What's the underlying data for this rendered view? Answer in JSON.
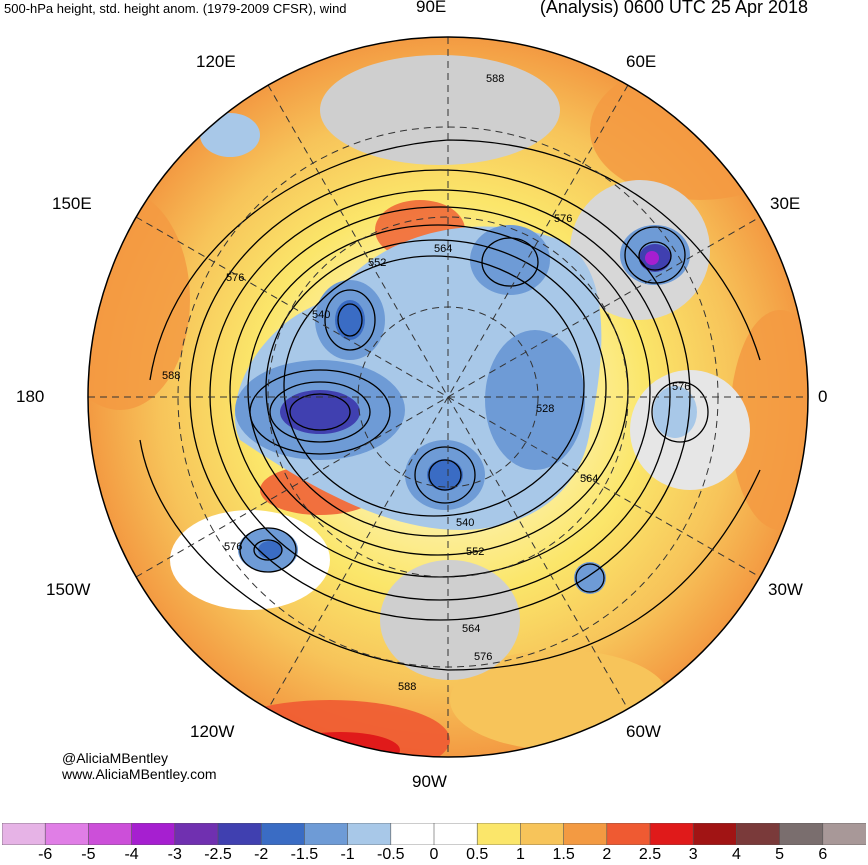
{
  "header": {
    "left_title": "500-hPa height, std. height anom. (1979-2009 CFSR), wind",
    "right_title": "(Analysis) 0600 UTC 25 Apr 2018"
  },
  "longitude_labels": {
    "e90": "90E",
    "e120": "120E",
    "e60": "60E",
    "e150": "150E",
    "e30": "30E",
    "l180": "180",
    "l0": "0",
    "w150": "150W",
    "w30": "30W",
    "w120": "120W",
    "w60": "60W",
    "w90": "90W"
  },
  "contour_labels": {
    "c588_top": "588",
    "c576_ne": "576",
    "c564_n": "564",
    "c552_n": "552",
    "c540_nw": "540",
    "c576_w": "576",
    "c588_w": "588",
    "c576_e": "576",
    "c528_c": "528",
    "c564_e": "564",
    "c540_s": "540",
    "c552_s": "552",
    "c576_sw": "576",
    "c564_s": "564",
    "c576_s": "576",
    "c588_s": "588"
  },
  "credits": {
    "twitter": "@AliciaMBentley",
    "website": "www.AliciaMBentley.com"
  },
  "colorbar": {
    "labels": [
      "-6",
      "-5",
      "-4",
      "-3",
      "-2.5",
      "-2",
      "-1.5",
      "-1",
      "-0.5",
      "0",
      "0.5",
      "1",
      "1.5",
      "2",
      "2.5",
      "3",
      "4",
      "5",
      "6"
    ],
    "colors": [
      "#e6b3e6",
      "#e07ee6",
      "#cc4fd9",
      "#a61fd0",
      "#7030b0",
      "#4040b0",
      "#3a6cc4",
      "#6e9bd6",
      "#a8c8e8",
      "#ffffff",
      "#ffffff",
      "#fbe66a",
      "#f7c45a",
      "#f39a42",
      "#ef5a32",
      "#e01a1a",
      "#a11414",
      "#7a3a3a",
      "#7a6e6e",
      "#a89898"
    ]
  },
  "colors": {
    "positive_anomaly": "#f7c45a",
    "negative_anomaly": "#6e9bd6",
    "neutral": "#ffffff"
  }
}
